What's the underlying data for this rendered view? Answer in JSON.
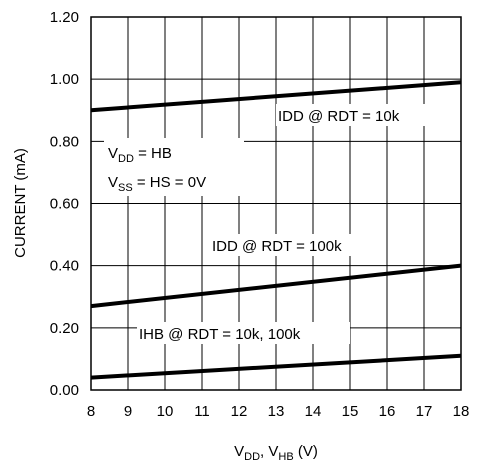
{
  "chart_data": {
    "type": "line",
    "xlabel": {
      "main": "V",
      "sub1": "DD",
      "mid": ", V",
      "sub2": "HB",
      "tail": " (V)"
    },
    "ylabel": "CURRENT (mA)",
    "xlim": [
      8,
      18
    ],
    "ylim": [
      0,
      1.2
    ],
    "x_ticks": [
      "8",
      "9",
      "10",
      "11",
      "12",
      "13",
      "14",
      "15",
      "16",
      "17",
      "18"
    ],
    "y_ticks": [
      "0.00",
      "0.20",
      "0.40",
      "0.60",
      "0.80",
      "1.00",
      "1.20"
    ],
    "grid": true,
    "series": [
      {
        "name": "IDD @ RDT = 10k",
        "x": [
          8,
          18
        ],
        "y": [
          0.9,
          0.99
        ]
      },
      {
        "name": "IDD @ RDT = 100k",
        "x": [
          8,
          18
        ],
        "y": [
          0.27,
          0.4
        ]
      },
      {
        "name": "IHB @ RDT = 10k, 100k",
        "x": [
          8,
          18
        ],
        "y": [
          0.04,
          0.11
        ]
      }
    ],
    "annotations": {
      "vdd": {
        "main": "V",
        "sub": "DD",
        "tail": " = HB"
      },
      "vss": {
        "main": "V",
        "sub": "SS",
        "tail": " = HS = 0V"
      }
    }
  }
}
